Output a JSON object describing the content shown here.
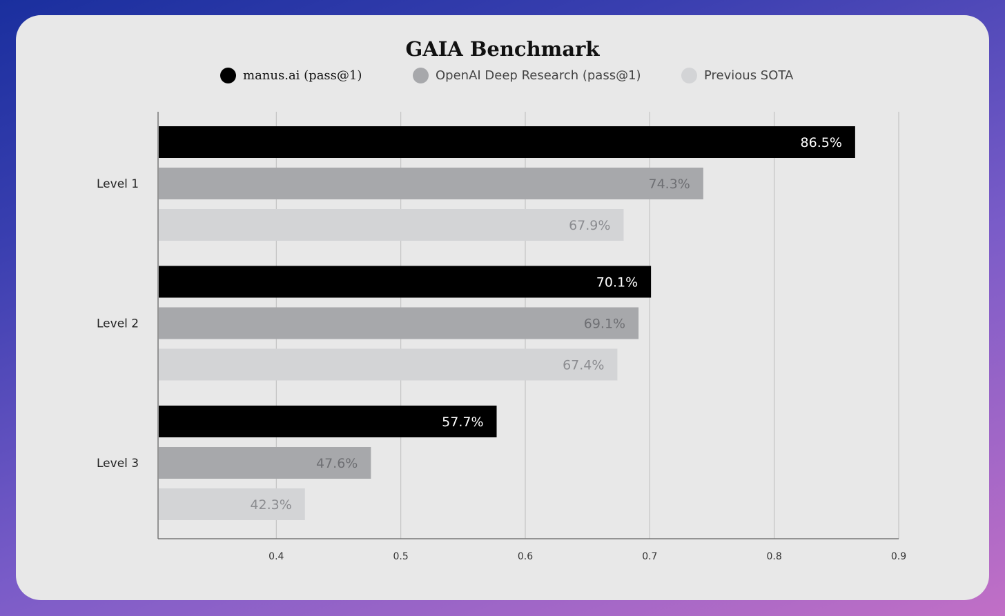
{
  "chart_data": {
    "type": "bar",
    "orientation": "horizontal",
    "title": "GAIA Benchmark",
    "categories": [
      "Level 1",
      "Level 2",
      "Level 3"
    ],
    "series": [
      {
        "name": "manus.ai (pass@1)",
        "values": [
          0.865,
          0.701,
          0.577
        ],
        "labels": [
          "86.5%",
          "70.1%",
          "57.7%"
        ],
        "color": "#000000",
        "label_color": "#ffffff"
      },
      {
        "name": "OpenAI Deep Research (pass@1)",
        "values": [
          0.743,
          0.691,
          0.476
        ],
        "labels": [
          "74.3%",
          "69.1%",
          "47.6%"
        ],
        "color": "#a7a8ab",
        "label_color": "#6e6f73"
      },
      {
        "name": "Previous SOTA",
        "values": [
          0.679,
          0.674,
          0.423
        ],
        "labels": [
          "67.9%",
          "67.4%",
          "42.3%"
        ],
        "color": "#d3d4d6",
        "label_color": "#8b8c90"
      }
    ],
    "xlim": [
      0.305,
      0.9
    ],
    "xticks": [
      "0.4",
      "0.5",
      "0.6",
      "0.7",
      "0.8",
      "0.9"
    ],
    "grid": true,
    "legend": "top"
  }
}
